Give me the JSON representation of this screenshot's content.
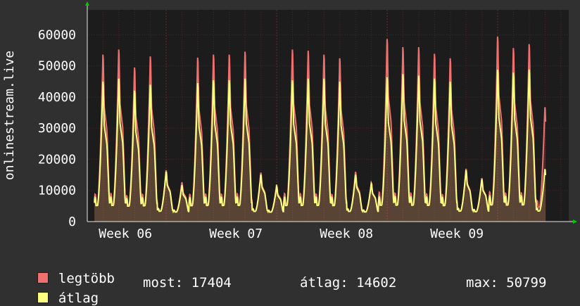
{
  "colors": {
    "background": "#303030",
    "plot_background": "#1c1c1c",
    "grid": "#4a2525",
    "axis": "#e8e8e8",
    "max_series": "#f07070",
    "avg_series": "#ffff80",
    "arrow": "#00cc00"
  },
  "chart_data": {
    "type": "area",
    "ylabel": "onlinestream.live",
    "ylim": [
      0,
      68000
    ],
    "y_ticks": [
      0,
      10000,
      20000,
      30000,
      40000,
      50000,
      60000
    ],
    "x_ticks": [
      "Week 06",
      "Week 07",
      "Week 08",
      "Week 09"
    ],
    "x_days": 30.5,
    "grid": true,
    "legend_position": "bottom-left",
    "daily_peaks": {
      "legtöbb": [
        55500,
        57200,
        51200,
        54900,
        17000,
        13000,
        54500,
        55500,
        55500,
        56500,
        16200,
        12200,
        57200,
        56800,
        55500,
        54300,
        16500,
        12800,
        60700,
        58000,
        58000,
        55800,
        54300,
        17500,
        14400,
        61500,
        57700,
        59000,
        38000
      ],
      "átlag": [
        46500,
        47500,
        43500,
        45500,
        16500,
        12000,
        46000,
        47000,
        47000,
        47500,
        15500,
        11500,
        47000,
        47500,
        47500,
        46500,
        15500,
        12500,
        48000,
        49000,
        48500,
        47500,
        46500,
        17000,
        14000,
        50500,
        49500,
        50500,
        17400
      ]
    },
    "series": [
      {
        "name": "legtöbb",
        "color": "#f07070"
      },
      {
        "name": "átlag",
        "color": "#ffff80"
      }
    ],
    "legend": {
      "max_label": "legtöbb",
      "avg_label": "átlag",
      "stats": {
        "now": "most: 17404",
        "avg": "átlag: 14602",
        "max": "max: 50799"
      }
    }
  }
}
